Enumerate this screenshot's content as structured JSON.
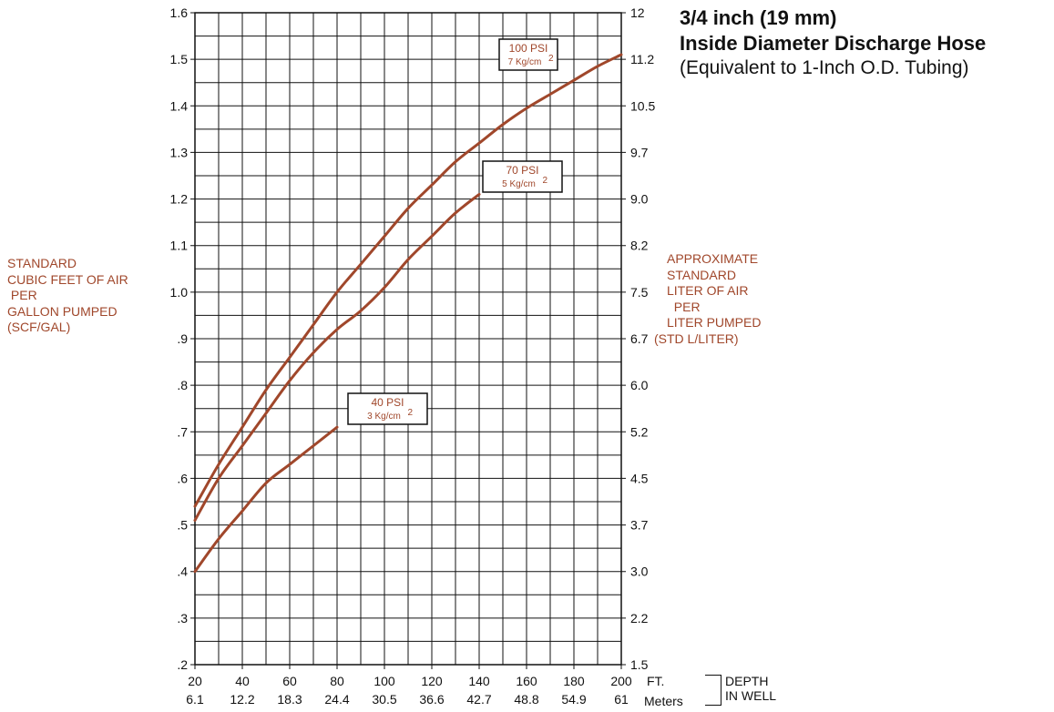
{
  "title": {
    "line1": "3/4 inch (19 mm)",
    "line2": "Inside Diameter Discharge Hose",
    "line3": "(Equivalent to 1-Inch O.D. Tubing)"
  },
  "left_axis_label": [
    "STANDARD",
    "CUBIC FEET OF AIR",
    " PER",
    "GALLON PUMPED",
    "(SCF/GAL)"
  ],
  "right_axis_label": [
    "APPROXIMATE",
    "STANDARD",
    "LITER OF AIR",
    "  PER",
    "LITER PUMPED",
    "(STD L/LITER)"
  ],
  "x_unit_ft": "FT.",
  "x_unit_m": "Meters",
  "depth_label": [
    "DEPTH",
    "IN WELL"
  ],
  "colors": {
    "curve": "#a0472b",
    "grid": "#111111"
  },
  "chart_data": {
    "type": "line",
    "xlim": [
      20,
      200
    ],
    "ylim": [
      0.2,
      1.6
    ],
    "grid": true,
    "x_ticks_ft": [
      "20",
      "40",
      "60",
      "80",
      "100",
      "120",
      "140",
      "160",
      "180",
      "200"
    ],
    "x_ticks_m": [
      "6.1",
      "12.2",
      "18.3",
      "24.4",
      "30.5",
      "36.6",
      "42.7",
      "48.8",
      "54.9",
      "61"
    ],
    "y_ticks_left": [
      {
        "v": 0.2,
        "label": ".2"
      },
      {
        "v": 0.3,
        "label": ".3"
      },
      {
        "v": 0.4,
        "label": ".4"
      },
      {
        "v": 0.5,
        "label": ".5"
      },
      {
        "v": 0.6,
        "label": ".6"
      },
      {
        "v": 0.7,
        "label": ".7"
      },
      {
        "v": 0.8,
        "label": ".8"
      },
      {
        "v": 0.9,
        "label": ".9"
      },
      {
        "v": 1.0,
        "label": "1.0"
      },
      {
        "v": 1.1,
        "label": "1.1"
      },
      {
        "v": 1.2,
        "label": "1.2"
      },
      {
        "v": 1.3,
        "label": "1.3"
      },
      {
        "v": 1.4,
        "label": "1.4"
      },
      {
        "v": 1.5,
        "label": "1.5"
      },
      {
        "v": 1.6,
        "label": "1.6"
      }
    ],
    "y_ticks_right": [
      {
        "v": 0.2,
        "label": "1.5"
      },
      {
        "v": 0.3,
        "label": "2.2"
      },
      {
        "v": 0.4,
        "label": "3.0"
      },
      {
        "v": 0.5,
        "label": "3.7"
      },
      {
        "v": 0.6,
        "label": "4.5"
      },
      {
        "v": 0.7,
        "label": "5.2"
      },
      {
        "v": 0.8,
        "label": "6.0"
      },
      {
        "v": 0.9,
        "label": "6.7"
      },
      {
        "v": 1.0,
        "label": "7.5"
      },
      {
        "v": 1.1,
        "label": "8.2"
      },
      {
        "v": 1.2,
        "label": "9.0"
      },
      {
        "v": 1.3,
        "label": "9.7"
      },
      {
        "v": 1.4,
        "label": "10.5"
      },
      {
        "v": 1.5,
        "label": "11.2"
      },
      {
        "v": 1.6,
        "label": "12"
      }
    ],
    "series": [
      {
        "name": "100 PSI",
        "sub": "7 Kg/cm",
        "sup": "2",
        "x": [
          20,
          30,
          40,
          50,
          60,
          70,
          80,
          90,
          100,
          110,
          120,
          130,
          140,
          150,
          160,
          170,
          180,
          190,
          200
        ],
        "y": [
          0.54,
          0.63,
          0.71,
          0.79,
          0.86,
          0.93,
          1.0,
          1.06,
          1.12,
          1.18,
          1.23,
          1.28,
          1.32,
          1.36,
          1.395,
          1.425,
          1.455,
          1.485,
          1.51
        ]
      },
      {
        "name": "70 PSI",
        "sub": "5 Kg/cm",
        "sup": "2",
        "x": [
          20,
          30,
          40,
          50,
          60,
          70,
          80,
          90,
          100,
          110,
          120,
          130,
          140
        ],
        "y": [
          0.51,
          0.6,
          0.67,
          0.74,
          0.81,
          0.87,
          0.92,
          0.96,
          1.01,
          1.07,
          1.12,
          1.17,
          1.21
        ]
      },
      {
        "name": "40 PSI",
        "sub": "3 Kg/cm",
        "sup": "2",
        "x": [
          20,
          30,
          40,
          50,
          60,
          70,
          80
        ],
        "y": [
          0.4,
          0.47,
          0.53,
          0.59,
          0.63,
          0.67,
          0.71
        ]
      }
    ]
  }
}
